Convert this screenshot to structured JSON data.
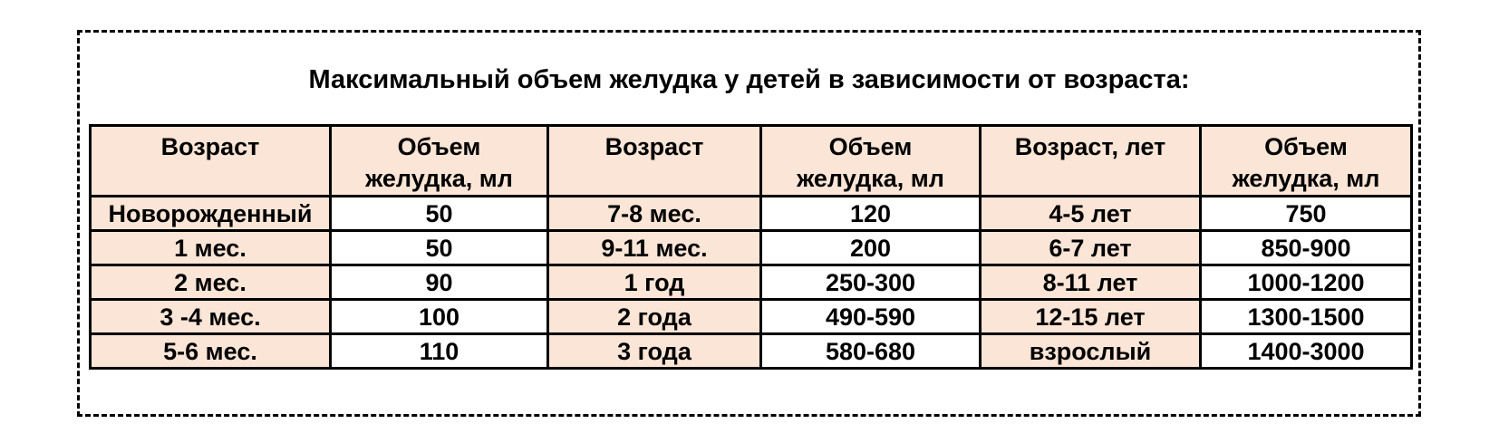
{
  "page": {
    "title": "Максимальный объем желудка у детей в зависимости от возраста:"
  },
  "table": {
    "headers": [
      "Возраст",
      "Объем желудка, мл",
      "Возраст",
      "Объем желудка, мл",
      "Возраст, лет",
      "Объем желудка, мл"
    ],
    "header_lines": [
      [
        "Возраст"
      ],
      [
        "Объем",
        "желудка, мл"
      ],
      [
        "Возраст"
      ],
      [
        "Объем",
        "желудка, мл"
      ],
      [
        "Возраст, лет"
      ],
      [
        "Объем",
        "желудка, мл"
      ]
    ],
    "rows": [
      [
        "Новорожденный",
        "50",
        "7-8 мес.",
        "120",
        "4-5 лет",
        "750"
      ],
      [
        "1 мес.",
        "50",
        "9-11 мес.",
        "200",
        "6-7 лет",
        "850-900"
      ],
      [
        "2 мес.",
        "90",
        "1 год",
        "250-300",
        "8-11 лет",
        "1000-1200"
      ],
      [
        "3 -4 мес.",
        "100",
        "2 года",
        "490-590",
        "12-15 лет",
        "1300-1500"
      ],
      [
        "5-6 мес.",
        "110",
        "3 года",
        "580-680",
        "взрослый",
        "1400-3000"
      ]
    ],
    "column_roles": [
      "age",
      "volume",
      "age",
      "volume",
      "age",
      "volume"
    ]
  },
  "colors": {
    "header_fill": "#FBE5D6",
    "age_cell_fill": "#FBE5D6",
    "volume_cell_fill": "#FFFFFF",
    "border_color": "#000000",
    "frame_border_color": "#000000",
    "text_color": "#000000",
    "page_background": "#FFFFFF"
  }
}
